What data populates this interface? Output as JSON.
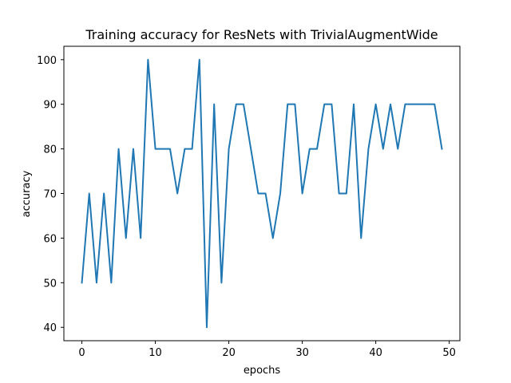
{
  "chart_data": {
    "type": "line",
    "title": "Training accuracy for ResNets with TrivialAugmentWide",
    "xlabel": "epochs",
    "ylabel": "accuracy",
    "xlim": [
      -2.45,
      51.45
    ],
    "ylim": [
      37,
      103
    ],
    "x_ticks": [
      0,
      10,
      20,
      30,
      40,
      50
    ],
    "y_ticks": [
      40,
      50,
      60,
      70,
      80,
      90,
      100
    ],
    "grid": false,
    "series": [
      {
        "name": "accuracy",
        "color": "#1f77b4",
        "x": [
          0,
          1,
          2,
          3,
          4,
          5,
          6,
          7,
          8,
          9,
          10,
          11,
          12,
          13,
          14,
          15,
          16,
          17,
          18,
          19,
          20,
          21,
          22,
          23,
          24,
          25,
          26,
          27,
          28,
          29,
          30,
          31,
          32,
          33,
          34,
          35,
          36,
          37,
          38,
          39,
          40,
          41,
          42,
          43,
          44,
          45,
          46,
          47,
          48,
          49
        ],
        "values": [
          50,
          70,
          50,
          70,
          50,
          80,
          60,
          80,
          60,
          100,
          80,
          80,
          80,
          70,
          80,
          80,
          100,
          40,
          90,
          50,
          80,
          90,
          90,
          80,
          70,
          70,
          60,
          70,
          90,
          90,
          70,
          80,
          80,
          90,
          90,
          70,
          70,
          90,
          60,
          80,
          90,
          80,
          90,
          80,
          90,
          90,
          90,
          90,
          90,
          80
        ]
      }
    ]
  }
}
